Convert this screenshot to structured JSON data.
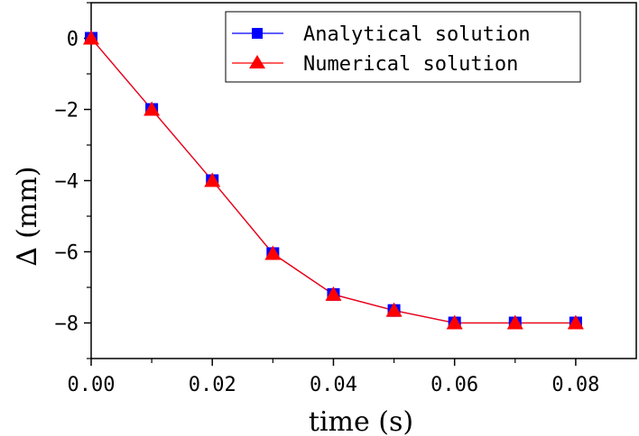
{
  "chart_data": {
    "type": "line",
    "xlabel": "time (s)",
    "ylabel": "∆ (mm)",
    "xlim": [
      0.0,
      0.09
    ],
    "ylim": [
      -9,
      1
    ],
    "x_ticks": [
      "0.00",
      "0.02",
      "0.04",
      "0.06",
      "0.08"
    ],
    "x_tick_values": [
      0.0,
      0.02,
      0.04,
      0.06,
      0.08
    ],
    "y_ticks": [
      "0",
      "−2",
      "−4",
      "−6",
      "−8"
    ],
    "y_tick_values": [
      0,
      -2,
      -4,
      -6,
      -8
    ],
    "x": [
      0.0,
      0.01,
      0.02,
      0.03,
      0.04,
      0.05,
      0.06,
      0.07,
      0.08
    ],
    "series": [
      {
        "name": "Analytical solution",
        "marker": "square",
        "color": "#0000ff",
        "values": [
          0,
          -2.0,
          -4.0,
          -6.05,
          -7.2,
          -7.65,
          -8.0,
          -8.0,
          -8.0
        ]
      },
      {
        "name": "Numerical solution",
        "marker": "triangle",
        "color": "#ff0000",
        "values": [
          0,
          -2.0,
          -4.0,
          -6.05,
          -7.2,
          -7.65,
          -8.0,
          -8.0,
          -8.0
        ]
      }
    ],
    "legend_position": "top-right",
    "grid": false
  }
}
